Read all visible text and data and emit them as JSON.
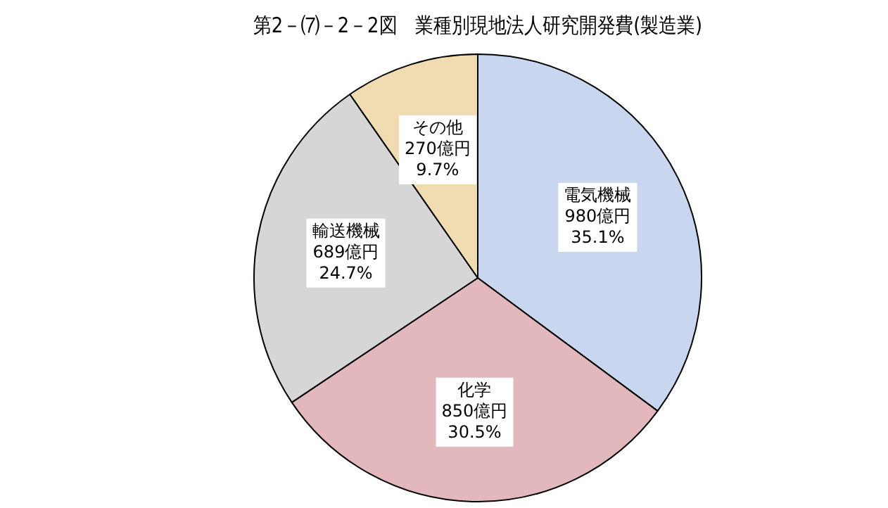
{
  "chart_data": {
    "type": "pie",
    "title": "第2－⑺－2－2図　業種別現地法人研究開発費(製造業)",
    "categories": [
      "電気機械",
      "化学",
      "輸送機械",
      "その他"
    ],
    "values": [
      980,
      850,
      689,
      270
    ],
    "colors": [
      "#c8d6f0",
      "#e2b8bc",
      "#d6d6d6",
      "#f0dcb0"
    ],
    "value_labels": [
      "980億円\n35.1%",
      "850億円\n30.5%",
      "689億円\n24.7%",
      "270億円\n9.7%"
    ],
    "legend": false
  }
}
